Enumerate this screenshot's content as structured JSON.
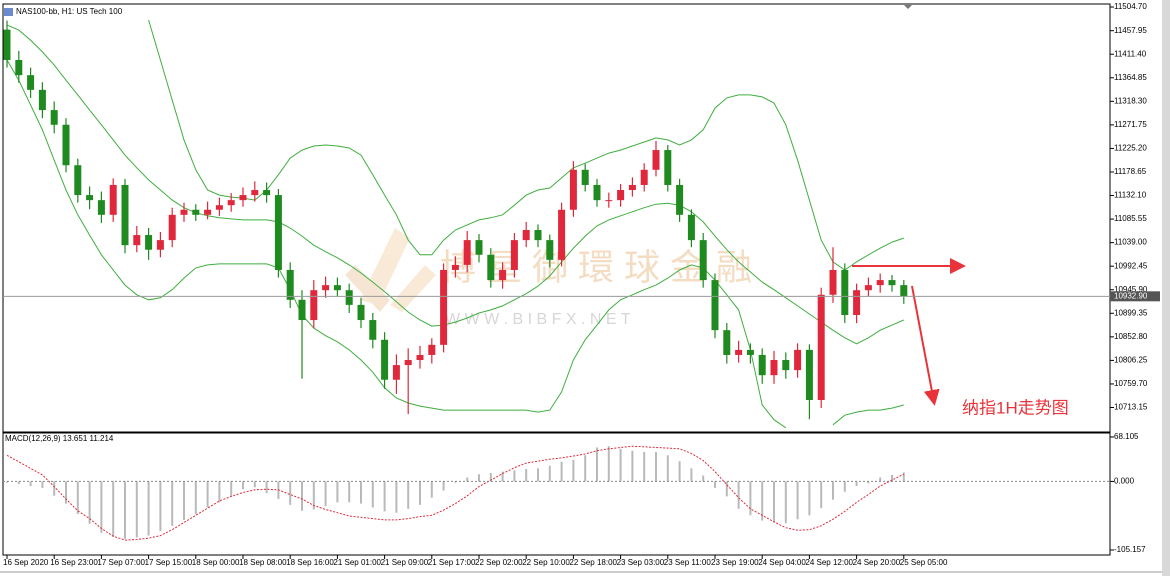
{
  "chart_data": [
    {
      "type": "candlestick",
      "title": "NAS100-bb, H1: US Tech 100",
      "categories": [
        "16 Sep 2020",
        null,
        null,
        null,
        "16 Sep 23:00",
        null,
        null,
        null,
        "17 Sep 07:00",
        null,
        null,
        null,
        "17 Sep 15:00",
        null,
        null,
        null,
        "18 Sep 00:00",
        null,
        null,
        null,
        "18 Sep 08:00",
        null,
        null,
        null,
        "18 Sep 16:00",
        null,
        null,
        null,
        "21 Sep 01:00",
        null,
        null,
        null,
        "21 Sep 09:00",
        null,
        null,
        null,
        "21 Sep 17:00",
        null,
        null,
        null,
        "22 Sep 02:00",
        null,
        null,
        null,
        "22 Sep 10:00",
        null,
        null,
        null,
        "22 Sep 18:00",
        null,
        null,
        null,
        "23 Sep 03:00",
        null,
        null,
        null,
        "23 Sep 11:00",
        null,
        null,
        null,
        "23 Sep 19:00",
        null,
        null,
        null,
        "24 Sep 04:00",
        null,
        null,
        null,
        "24 Sep 12:00",
        null,
        null,
        null,
        "24 Sep 20:00",
        null,
        null,
        null,
        "25 Sep 05:00"
      ],
      "open": [
        11460,
        11400,
        11370,
        11341,
        11301,
        11272,
        11192,
        11133,
        11123,
        11094,
        11153,
        11034,
        11054,
        11025,
        11044,
        11094,
        11104,
        11094,
        11104,
        11113,
        11123,
        11133,
        11143,
        11133,
        10985,
        10926,
        10886,
        10945,
        10955,
        10945,
        10916,
        10886,
        10847,
        10768,
        10797,
        10807,
        10817,
        10837,
        10985,
        10995,
        11044,
        11015,
        10965,
        10985,
        11044,
        11064,
        11044,
        11005,
        11104,
        11183,
        11153,
        11123,
        11123,
        11143,
        11153,
        11183,
        11222,
        11153,
        11094,
        11044,
        10965,
        10866,
        10817,
        10827,
        10817,
        10777,
        10807,
        10787,
        10827,
        10728,
        10936,
        10985,
        10896,
        10945,
        10955,
        10965,
        10955
      ],
      "high": [
        11478,
        11418,
        11385,
        11356,
        11318,
        11285,
        11205,
        11150,
        11140,
        11166,
        11165,
        11072,
        11068,
        11060,
        11108,
        11118,
        11115,
        11120,
        11128,
        11137,
        11148,
        11160,
        11158,
        11145,
        11000,
        10945,
        10965,
        10972,
        10970,
        10958,
        10930,
        10900,
        10862,
        10818,
        10830,
        10835,
        10850,
        10998,
        11012,
        11062,
        11056,
        11028,
        11000,
        11058,
        11080,
        11075,
        11055,
        11118,
        11200,
        11195,
        11165,
        11138,
        11155,
        11168,
        11196,
        11240,
        11232,
        11165,
        11105,
        11058,
        10978,
        10880,
        10845,
        10840,
        10830,
        10825,
        10822,
        10840,
        10838,
        10950,
        11030,
        10998,
        10958,
        10970,
        10978,
        10975,
        10965
      ],
      "low": [
        11385,
        11355,
        11325,
        11285,
        11255,
        11178,
        11118,
        11105,
        11078,
        11080,
        11018,
        11020,
        11005,
        11010,
        11030,
        11080,
        11082,
        11085,
        11092,
        11100,
        11110,
        11120,
        11118,
        10970,
        10910,
        10770,
        10870,
        10930,
        10932,
        10900,
        10870,
        10830,
        10750,
        10740,
        10700,
        10790,
        10800,
        10822,
        10970,
        10980,
        11000,
        10950,
        10948,
        10970,
        11030,
        11030,
        10990,
        10992,
        11090,
        11140,
        11110,
        11108,
        11110,
        11130,
        11140,
        11170,
        11140,
        11080,
        11030,
        10950,
        10850,
        10800,
        10802,
        10800,
        10760,
        10760,
        10770,
        10772,
        10690,
        10712,
        10920,
        10880,
        10880,
        10932,
        10940,
        10942,
        10918
      ],
      "close": [
        11400,
        11370,
        11341,
        11301,
        11272,
        11192,
        11133,
        11123,
        11094,
        11153,
        11034,
        11054,
        11025,
        11044,
        11094,
        11104,
        11094,
        11104,
        11113,
        11123,
        11133,
        11143,
        11133,
        10985,
        10926,
        10886,
        10945,
        10955,
        10945,
        10916,
        10886,
        10847,
        10768,
        10797,
        10807,
        10817,
        10837,
        10985,
        10995,
        11044,
        11015,
        10965,
        10985,
        11044,
        11064,
        11044,
        11005,
        11104,
        11183,
        11153,
        11123,
        11123,
        11143,
        11153,
        11183,
        11222,
        11153,
        11094,
        11044,
        10965,
        10866,
        10817,
        10827,
        10817,
        10777,
        10807,
        10787,
        10827,
        10728,
        10936,
        10985,
        10896,
        10945,
        10955,
        10965,
        10955,
        10933
      ],
      "up_color": "#e0283c",
      "down_color": "#1f8a1f",
      "bands": {
        "color": "#3fae3f",
        "upper": [
          null,
          null,
          null,
          null,
          null,
          null,
          null,
          null,
          null,
          null,
          null,
          null,
          11479,
          11400,
          11321,
          11242,
          11183,
          11143,
          11133,
          11129,
          11127,
          11123,
          11143,
          11173,
          11206,
          11222,
          11230,
          11232,
          11230,
          11226,
          11212,
          11173,
          11133,
          11094,
          11044,
          11015,
          11015,
          11044,
          11064,
          11074,
          11084,
          11088,
          11094,
          11113,
          11133,
          11143,
          11147,
          11167,
          11187,
          11196,
          11206,
          11216,
          11222,
          11230,
          11238,
          11246,
          11242,
          11232,
          11242,
          11262,
          11305,
          11325,
          11331,
          11331,
          11327,
          11315,
          11272,
          11202,
          11123,
          11044,
          11001,
          10985,
          11001,
          11015,
          11028,
          11040,
          11048
        ],
        "middle": [
          11469,
          11459,
          11439,
          11416,
          11390,
          11360,
          11331,
          11301,
          11272,
          11242,
          11212,
          11187,
          11163,
          11143,
          11123,
          11108,
          11098,
          11092,
          11088,
          11086,
          11084,
          11084,
          11084,
          11080,
          11068,
          11052,
          11034,
          11021,
          11009,
          10995,
          10979,
          10961,
          10942,
          10922,
          10902,
          10886,
          10874,
          10876,
          10882,
          10890,
          10900,
          10906,
          10914,
          10926,
          10938,
          10953,
          10973,
          11001,
          11028,
          11052,
          11072,
          11084,
          11092,
          11100,
          11108,
          11115,
          11117,
          11113,
          11100,
          11080,
          11052,
          11025,
          11001,
          10981,
          10961,
          10946,
          10930,
          10914,
          10898,
          10882,
          10866,
          10851,
          10839,
          10851,
          10866,
          10876,
          10886
        ],
        "lower": [
          11400,
          11360,
          11311,
          11262,
          11202,
          11143,
          11094,
          11054,
          11015,
          10985,
          10955,
          10936,
          10926,
          10930,
          10946,
          10969,
          10989,
          10995,
          10997,
          10997,
          10997,
          10997,
          10997,
          10989,
          10946,
          10896,
          10870,
          10855,
          10843,
          10827,
          10807,
          10783,
          10752,
          10732,
          10722,
          10716,
          10712,
          10708,
          10708,
          10708,
          10708,
          10708,
          10708,
          10708,
          10708,
          10704,
          10708,
          10744,
          10807,
          10847,
          10876,
          10906,
          10926,
          10936,
          10946,
          10955,
          10969,
          10985,
          10995,
          10989,
          10965,
          10936,
          10906,
          10827,
          10718,
          10689,
          10673,
          null,
          null,
          null,
          10679,
          10698,
          10704,
          10708,
          10708,
          10712,
          10718
        ]
      },
      "ylim": [
        10666.7,
        11508.7
      ],
      "yticks": [
        {
          "value": 11504.7,
          "label": "11504.70"
        },
        11457.95,
        {
          "value": 11411.4,
          "label": "11411.40"
        },
        11364.85,
        {
          "value": 11318.3,
          "label": "11318.30"
        },
        11271.75,
        {
          "value": 11225.2,
          "label": "11225.20"
        },
        11178.65,
        {
          "value": 11132.1,
          "label": "11132.10"
        },
        11085.55,
        {
          "value": 11039,
          "label": "11039.00"
        },
        10992.45,
        {
          "value": 10945.9,
          "label": "10945.90"
        },
        10899.35,
        {
          "value": 10852.8,
          "label": "10852.80"
        },
        10806.25,
        {
          "value": 10759.7,
          "label": "10759.70"
        },
        10713.15
      ],
      "current_price": {
        "value": 10932.9,
        "label": "10932.90"
      },
      "annotations": [
        "纳指1H走势图"
      ],
      "watermark": [
        "博星御環球金融",
        "W W W . B I B F X . N E T"
      ]
    },
    {
      "type": "macd",
      "title": "MACD(12,26,9) 13.651 11.214",
      "histogram": {
        "color": "#b9b9b9",
        "values": [
          -2,
          -4,
          -7,
          -10,
          -22,
          -34,
          -50,
          -65,
          -79,
          -85,
          -88,
          -86,
          -83,
          -76,
          -68,
          -59,
          -50,
          -40,
          -32,
          -22,
          -12,
          -9,
          -18,
          -27,
          -36,
          -45,
          -43,
          -38,
          -32,
          -32,
          -34,
          -40,
          -46,
          -48,
          -42,
          -36,
          -25,
          -14,
          -2,
          6,
          11,
          13,
          15,
          17,
          19,
          20,
          24,
          30,
          33,
          40,
          52,
          54,
          50,
          47,
          45,
          45,
          40,
          31,
          20,
          9,
          -10,
          -23,
          -42,
          -52,
          -60,
          -63,
          -64,
          -58,
          -52,
          -41,
          -28,
          -16,
          -7,
          -3,
          6,
          10,
          13.651
        ]
      },
      "signal": {
        "color": "#e0283c",
        "values": [
          40,
          30,
          20,
          10,
          -8,
          -27,
          -45,
          -57,
          -72,
          -84,
          -90,
          -89,
          -87,
          -83,
          -74,
          -63,
          -52,
          -41,
          -30,
          -23,
          -17,
          -13,
          -12,
          -13,
          -20,
          -27,
          -37,
          -43,
          -48,
          -53,
          -55,
          -57,
          -59,
          -59,
          -57,
          -54,
          -52,
          -44,
          -34,
          -22,
          -8,
          2,
          12,
          21,
          28,
          31,
          34,
          36,
          39,
          42,
          47,
          50,
          52,
          54,
          53,
          52,
          51,
          50,
          43,
          32,
          15,
          -5,
          -25,
          -42,
          -52,
          -62,
          -71,
          -75,
          -74,
          -68,
          -58,
          -46,
          -32,
          -20,
          -7,
          2,
          11.214
        ]
      },
      "ylim": [
        -112.8,
        74.2
      ],
      "yticks": [
        68.105,
        {
          "value": 0,
          "label": "0.000"
        },
        -105.157
      ],
      "zero_line": true
    }
  ]
}
